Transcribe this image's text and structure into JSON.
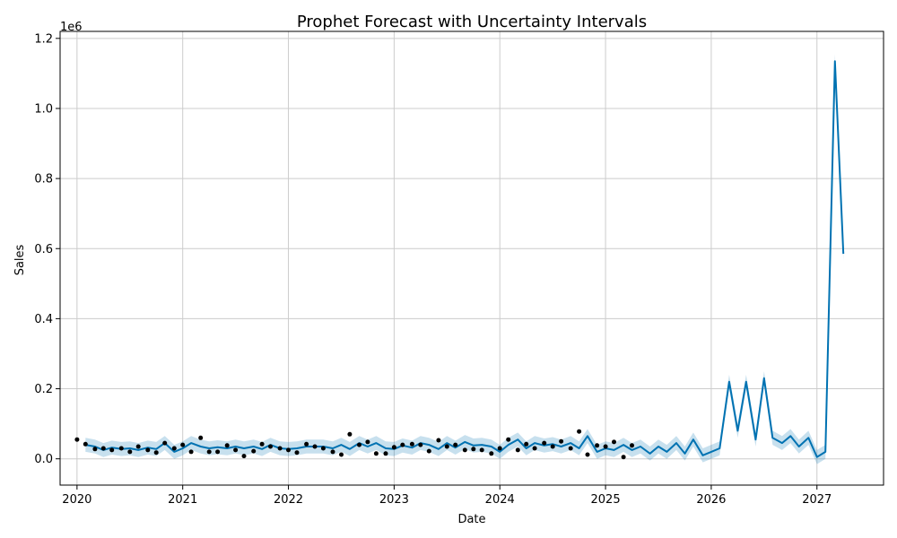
{
  "chart_data": {
    "type": "line",
    "title": "Prophet Forecast with Uncertainty Intervals",
    "xlabel": "Date",
    "ylabel": "Sales",
    "y_offset_text": "1e6",
    "y_scale_factor": 1000000,
    "xlim": [
      2019.84,
      2027.63
    ],
    "ylim": [
      -0.075,
      1.22
    ],
    "x_ticks": [
      2020,
      2021,
      2022,
      2023,
      2024,
      2025,
      2026,
      2027
    ],
    "x_tick_labels": [
      "2020",
      "2021",
      "2022",
      "2023",
      "2024",
      "2025",
      "2026",
      "2027"
    ],
    "y_ticks": [
      0.0,
      0.2,
      0.4,
      0.6,
      0.8,
      1.0,
      1.2
    ],
    "y_tick_labels": [
      "0.0",
      "0.2",
      "0.4",
      "0.6",
      "0.8",
      "1.0",
      "1.2"
    ],
    "grid": true,
    "colors": {
      "line": "#0072B2",
      "band": "#0072B2",
      "points": "#000000",
      "grid": "#cccccc"
    },
    "series": [
      {
        "kind": "forecast",
        "x": [
          2020.08,
          2020.17,
          2020.25,
          2020.33,
          2020.42,
          2020.5,
          2020.58,
          2020.67,
          2020.75,
          2020.83,
          2020.92,
          2021.0,
          2021.08,
          2021.17,
          2021.25,
          2021.33,
          2021.42,
          2021.5,
          2021.58,
          2021.67,
          2021.75,
          2021.83,
          2021.92,
          2022.0,
          2022.08,
          2022.17,
          2022.25,
          2022.33,
          2022.42,
          2022.5,
          2022.58,
          2022.67,
          2022.75,
          2022.83,
          2022.92,
          2023.0,
          2023.08,
          2023.17,
          2023.25,
          2023.33,
          2023.42,
          2023.5,
          2023.58,
          2023.67,
          2023.75,
          2023.83,
          2023.92,
          2024.0,
          2024.08,
          2024.17,
          2024.25,
          2024.33,
          2024.42,
          2024.5,
          2024.58,
          2024.67,
          2024.75,
          2024.83,
          2024.92,
          2025.0,
          2025.08,
          2025.17,
          2025.25,
          2025.33,
          2025.42,
          2025.5,
          2025.58,
          2025.67,
          2025.75,
          2025.83,
          2025.92,
          2026.0,
          2026.08,
          2026.17,
          2026.25,
          2026.33,
          2026.42,
          2026.5,
          2026.58,
          2026.67,
          2026.75,
          2026.83,
          2026.92,
          2027.0,
          2027.08,
          2027.17,
          2027.25
        ],
        "y": [
          0.04,
          0.035,
          0.025,
          0.032,
          0.028,
          0.03,
          0.025,
          0.032,
          0.028,
          0.045,
          0.02,
          0.03,
          0.045,
          0.035,
          0.03,
          0.033,
          0.03,
          0.035,
          0.03,
          0.035,
          0.028,
          0.04,
          0.03,
          0.028,
          0.03,
          0.035,
          0.035,
          0.035,
          0.03,
          0.04,
          0.028,
          0.045,
          0.035,
          0.045,
          0.03,
          0.028,
          0.038,
          0.032,
          0.045,
          0.04,
          0.028,
          0.045,
          0.032,
          0.048,
          0.038,
          0.04,
          0.035,
          0.02,
          0.04,
          0.055,
          0.03,
          0.045,
          0.038,
          0.042,
          0.035,
          0.045,
          0.03,
          0.065,
          0.02,
          0.03,
          0.025,
          0.04,
          0.025,
          0.035,
          0.015,
          0.035,
          0.02,
          0.045,
          0.015,
          0.055,
          0.01,
          0.02,
          0.03,
          0.22,
          0.08,
          0.22,
          0.055,
          0.23,
          0.06,
          0.045,
          0.065,
          0.035,
          0.06,
          0.005,
          0.02,
          1.135,
          0.585
        ],
        "y_lower": [
          0.02,
          0.015,
          0.005,
          0.012,
          0.008,
          0.01,
          0.005,
          0.012,
          0.008,
          0.025,
          0.0,
          0.01,
          0.025,
          0.015,
          0.01,
          0.013,
          0.01,
          0.015,
          0.01,
          0.015,
          0.008,
          0.02,
          0.01,
          0.008,
          0.01,
          0.015,
          0.015,
          0.015,
          0.01,
          0.02,
          0.008,
          0.025,
          0.015,
          0.025,
          0.01,
          0.008,
          0.018,
          0.012,
          0.025,
          0.02,
          0.008,
          0.025,
          0.012,
          0.028,
          0.018,
          0.02,
          0.015,
          0.0,
          0.02,
          0.035,
          0.01,
          0.025,
          0.018,
          0.022,
          0.015,
          0.025,
          0.01,
          0.045,
          0.0,
          0.01,
          0.005,
          0.02,
          0.005,
          0.015,
          -0.005,
          0.015,
          0.0,
          0.025,
          -0.005,
          0.035,
          -0.01,
          0.0,
          0.01,
          0.2,
          0.06,
          0.2,
          0.035,
          0.21,
          0.04,
          0.025,
          0.045,
          0.015,
          0.04,
          -0.015,
          0.0,
          1.115,
          0.565
        ],
        "y_upper": [
          0.06,
          0.055,
          0.045,
          0.052,
          0.048,
          0.05,
          0.045,
          0.052,
          0.048,
          0.065,
          0.04,
          0.05,
          0.065,
          0.055,
          0.05,
          0.053,
          0.05,
          0.055,
          0.05,
          0.055,
          0.048,
          0.06,
          0.05,
          0.048,
          0.05,
          0.055,
          0.055,
          0.055,
          0.05,
          0.06,
          0.048,
          0.065,
          0.055,
          0.065,
          0.05,
          0.048,
          0.058,
          0.052,
          0.065,
          0.06,
          0.048,
          0.065,
          0.052,
          0.068,
          0.058,
          0.06,
          0.055,
          0.04,
          0.06,
          0.075,
          0.05,
          0.065,
          0.058,
          0.062,
          0.055,
          0.065,
          0.05,
          0.085,
          0.04,
          0.05,
          0.045,
          0.06,
          0.045,
          0.055,
          0.035,
          0.055,
          0.04,
          0.065,
          0.035,
          0.075,
          0.03,
          0.04,
          0.05,
          0.24,
          0.1,
          0.24,
          0.075,
          0.25,
          0.08,
          0.065,
          0.085,
          0.055,
          0.08,
          0.025,
          0.04,
          1.155,
          0.605
        ]
      },
      {
        "kind": "observed",
        "x": [
          2020.0,
          2020.08,
          2020.17,
          2020.25,
          2020.33,
          2020.42,
          2020.5,
          2020.58,
          2020.67,
          2020.75,
          2020.83,
          2020.92,
          2021.0,
          2021.08,
          2021.17,
          2021.25,
          2021.33,
          2021.42,
          2021.5,
          2021.58,
          2021.67,
          2021.75,
          2021.83,
          2021.92,
          2022.0,
          2022.08,
          2022.17,
          2022.25,
          2022.33,
          2022.42,
          2022.5,
          2022.58,
          2022.67,
          2022.75,
          2022.83,
          2022.92,
          2023.0,
          2023.08,
          2023.17,
          2023.25,
          2023.33,
          2023.42,
          2023.5,
          2023.58,
          2023.67,
          2023.75,
          2023.83,
          2023.92,
          2024.0,
          2024.08,
          2024.17,
          2024.25,
          2024.33,
          2024.42,
          2024.5,
          2024.58,
          2024.67,
          2024.75,
          2024.83,
          2024.92,
          2025.0,
          2025.08,
          2025.17,
          2025.25
        ],
        "y": [
          0.055,
          0.042,
          0.028,
          0.03,
          0.025,
          0.03,
          0.02,
          0.035,
          0.025,
          0.018,
          0.045,
          0.03,
          0.04,
          0.02,
          0.06,
          0.02,
          0.02,
          0.038,
          0.025,
          0.008,
          0.022,
          0.042,
          0.035,
          0.03,
          0.025,
          0.018,
          0.042,
          0.035,
          0.03,
          0.02,
          0.012,
          0.07,
          0.04,
          0.048,
          0.015,
          0.015,
          0.033,
          0.04,
          0.042,
          0.04,
          0.022,
          0.053,
          0.035,
          0.04,
          0.025,
          0.028,
          0.025,
          0.015,
          0.03,
          0.055,
          0.025,
          0.042,
          0.03,
          0.045,
          0.035,
          0.05,
          0.03,
          0.078,
          0.012,
          0.038,
          0.035,
          0.048,
          0.005,
          0.038
        ]
      }
    ]
  }
}
